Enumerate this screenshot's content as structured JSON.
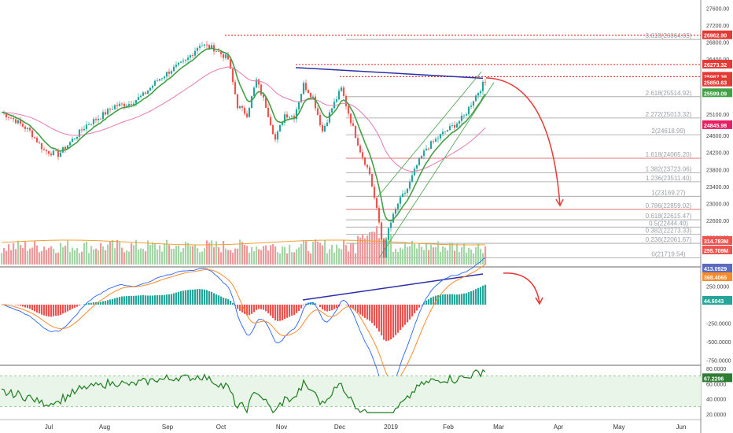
{
  "colors": {
    "up": "#26a69a",
    "down": "#ef5350",
    "ema_green": "#43a047",
    "ma_pink": "#e879b0",
    "fib_line": "#9e9e9e",
    "fib_red": "#e57373",
    "resistance_red": "#e53935",
    "trendline_blue": "#2c2fa8",
    "projection_red": "#e53935",
    "volume_up": "#a5d6a7",
    "volume_down": "#ef9a9a",
    "volume_ma": "#f0a030",
    "macd_line": "#2962ff",
    "signal_line": "#ff8a2a",
    "rsi_line": "#1e7d1e",
    "rsi_band": "#e8f5e8"
  },
  "chart_data": [
    {
      "type": "candlestick",
      "panel": "price",
      "x_labels": [
        "Jul",
        "Aug",
        "Sep",
        "Oct",
        "Nov",
        "Dec",
        "2019",
        "Feb",
        "Mar",
        "Apr",
        "May",
        "Jun"
      ],
      "y_ticks": [
        "27600.00",
        "27200.00",
        "26800.00",
        "26400.00",
        "26000.00",
        "25600.00",
        "25100.00",
        "24600.00",
        "24200.00",
        "23800.00",
        "23400.00",
        "23000.00",
        "22600.00",
        "22200.00",
        "21525.00"
      ],
      "ylim": [
        21525,
        27700
      ],
      "close_path": [
        [
          0,
          25150
        ],
        [
          6,
          24950
        ],
        [
          12,
          24700
        ],
        [
          18,
          24250
        ],
        [
          24,
          24150
        ],
        [
          30,
          24500
        ],
        [
          36,
          24850
        ],
        [
          42,
          25050
        ],
        [
          48,
          25300
        ],
        [
          54,
          25350
        ],
        [
          60,
          25550
        ],
        [
          66,
          25900
        ],
        [
          72,
          26150
        ],
        [
          78,
          26350
        ],
        [
          84,
          26750
        ],
        [
          90,
          26650
        ],
        [
          96,
          26400
        ],
        [
          100,
          25300
        ],
        [
          104,
          25100
        ],
        [
          108,
          25900
        ],
        [
          112,
          25300
        ],
        [
          116,
          24500
        ],
        [
          120,
          25100
        ],
        [
          124,
          25050
        ],
        [
          128,
          25800
        ],
        [
          132,
          25500
        ],
        [
          136,
          24700
        ],
        [
          140,
          25250
        ],
        [
          144,
          25700
        ],
        [
          148,
          24950
        ],
        [
          152,
          24250
        ],
        [
          156,
          23700
        ],
        [
          160,
          22550
        ],
        [
          162,
          21780
        ],
        [
          164,
          22400
        ],
        [
          168,
          23000
        ],
        [
          172,
          23350
        ],
        [
          176,
          23900
        ],
        [
          180,
          24300
        ],
        [
          184,
          24500
        ],
        [
          188,
          24700
        ],
        [
          192,
          24850
        ],
        [
          196,
          25050
        ],
        [
          200,
          25450
        ],
        [
          204,
          25800
        ],
        [
          206,
          25900
        ]
      ],
      "horizontal_levels": [
        {
          "label": "26962.90",
          "value": 26962.9,
          "style": "dotted-red"
        },
        {
          "label": "26273.32",
          "value": 26273.32,
          "style": "dotted-red"
        },
        {
          "label": "25987.38",
          "value": 25987.38,
          "style": "dotted-red"
        }
      ],
      "fibonacci": [
        {
          "label": "3.618(26864.65)",
          "value": 26864.65
        },
        {
          "label": "2.618(25514.92)",
          "value": 25514.92
        },
        {
          "label": "2.272(25013.32)",
          "value": 25013.32
        },
        {
          "label": "2(24618.99)",
          "value": 24618.99
        },
        {
          "label": "1.618(24065.20)",
          "value": 24065.2
        },
        {
          "label": "1.382(23723.06)",
          "value": 23723.06
        },
        {
          "label": "1.236(23511.40)",
          "value": 23511.4
        },
        {
          "label": "1(23169.27)",
          "value": 23169.27
        },
        {
          "label": "0.786(22859.02)",
          "value": 22859.02
        },
        {
          "label": "0.618(22615.47)",
          "value": 22615.47
        },
        {
          "label": "0.5(22444.40)",
          "value": 22444.4
        },
        {
          "label": "0.382(22273.33)",
          "value": 22273.33
        },
        {
          "label": "0.236(22061.67)",
          "value": 22061.67
        },
        {
          "label": "0(21719.54)",
          "value": 21719.54
        }
      ],
      "price_tags": [
        {
          "label": "26962.90",
          "value": 26962.9,
          "color": "#e53935"
        },
        {
          "label": "26273.32",
          "value": 26273.32,
          "color": "#e53935"
        },
        {
          "label": "25987.38",
          "value": 25987.38,
          "color": "#e53935"
        },
        {
          "label": "25850.63",
          "value": 25850.63,
          "color": "#e53935"
        },
        {
          "label": "25599.09",
          "value": 25599.09,
          "color": "#43a047"
        },
        {
          "label": "24845.98",
          "value": 24845.98,
          "color": "#e91e63"
        }
      ],
      "volume_tags": [
        {
          "label": "314.783M",
          "color": "#ef5350"
        },
        {
          "label": "255.709M",
          "color": "#ef5350"
        }
      ]
    },
    {
      "type": "histogram-line",
      "panel": "macd",
      "y_ticks": [
        "250.0000",
        "-250.0000",
        "-500.0000",
        "-750.0000"
      ],
      "ylim": [
        -800,
        500
      ],
      "tags": [
        {
          "label": "413.0929",
          "color": "#5c6bc0"
        },
        {
          "label": "368.4065",
          "color": "#ff8a2a"
        },
        {
          "label": "44.6043",
          "color": "#26a69a"
        }
      ]
    },
    {
      "type": "line",
      "panel": "rsi",
      "y_ticks": [
        "80.0000",
        "60.0000",
        "40.0000",
        "20.0000"
      ],
      "ylim": [
        18,
        82
      ],
      "tags": [
        {
          "label": "67.2296",
          "color": "#2e7d32"
        }
      ]
    }
  ]
}
